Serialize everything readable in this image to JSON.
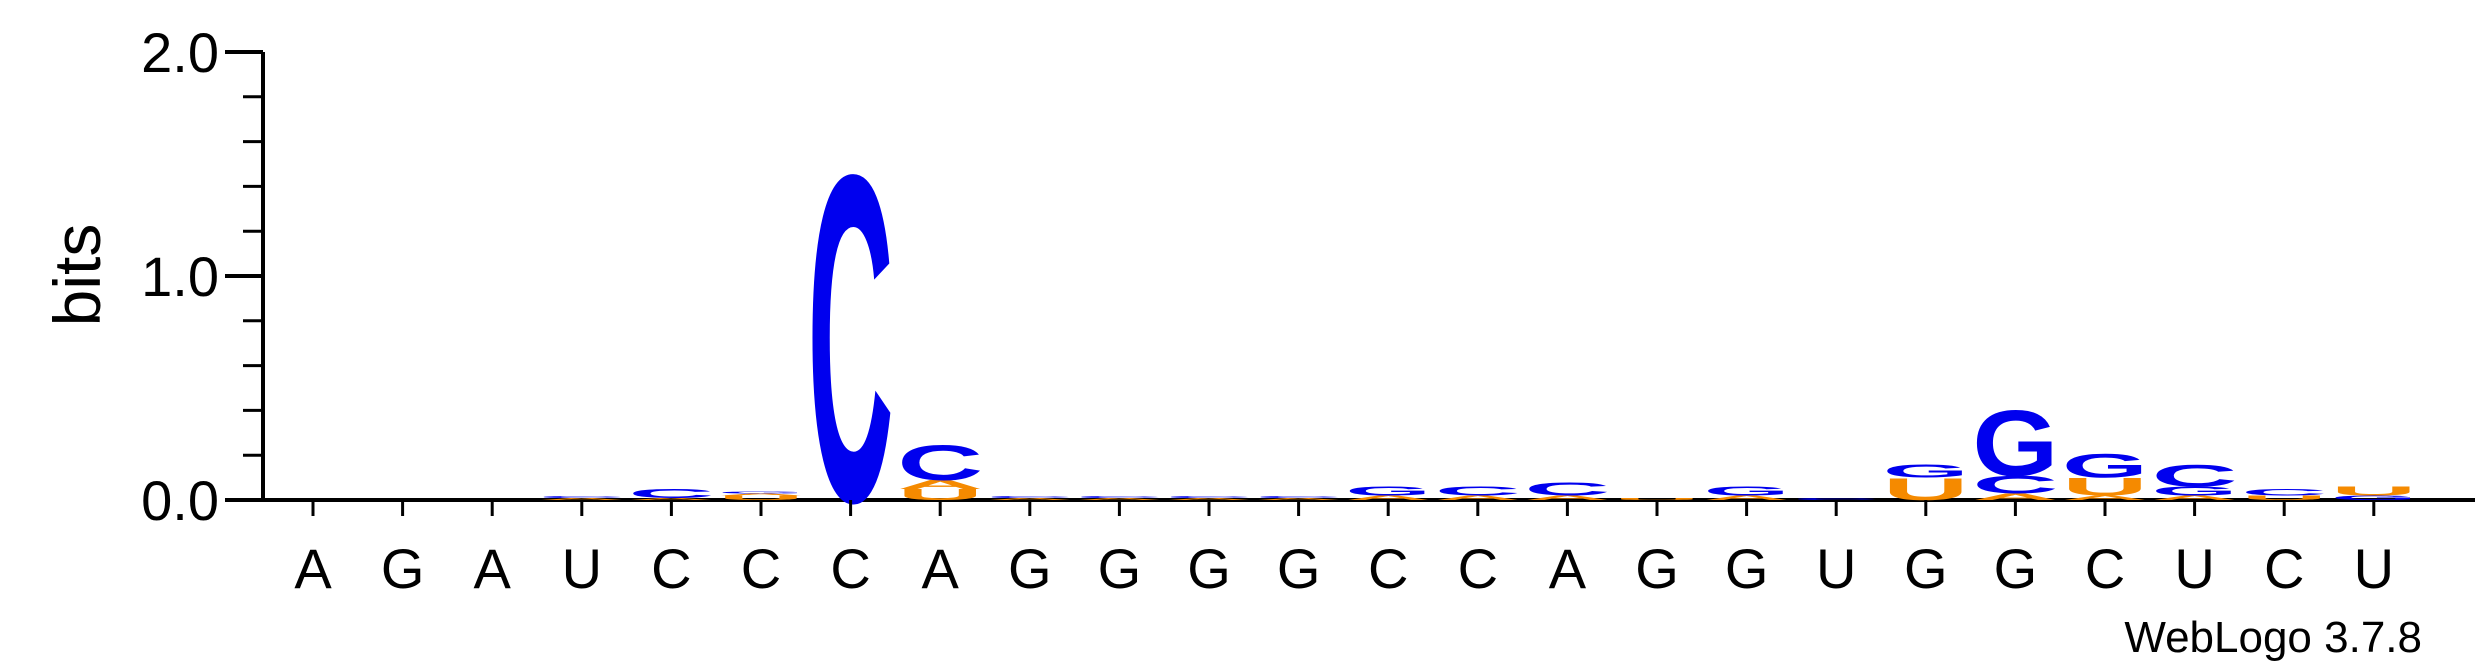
{
  "chart_data": {
    "type": "sequence-logo",
    "ylabel": "bits",
    "ylim": [
      0,
      2.0
    ],
    "yticks": [
      {
        "value": 0.0,
        "label": "0.0"
      },
      {
        "value": 1.0,
        "label": "1.0"
      },
      {
        "value": 2.0,
        "label": "2.0"
      }
    ],
    "positions": [
      "A",
      "G",
      "A",
      "U",
      "C",
      "C",
      "C",
      "A",
      "G",
      "G",
      "G",
      "G",
      "C",
      "C",
      "A",
      "G",
      "G",
      "U",
      "G",
      "G",
      "C",
      "U",
      "C",
      "U"
    ],
    "colors": {
      "A": "#f58a00",
      "C": "#0000ee",
      "G": "#0000ee",
      "U": "#f58a00"
    },
    "stacks": [
      [],
      [],
      [],
      [
        {
          "letter": "A",
          "value": 0.01
        },
        {
          "letter": "C",
          "value": 0.01
        }
      ],
      [
        {
          "letter": "A",
          "value": 0.01
        },
        {
          "letter": "C",
          "value": 0.04
        }
      ],
      [
        {
          "letter": "U",
          "value": 0.02
        },
        {
          "letter": "A",
          "value": 0.01
        },
        {
          "letter": "G",
          "value": 0.01
        }
      ],
      [
        {
          "letter": "C",
          "value": 1.5
        }
      ],
      [
        {
          "letter": "U",
          "value": 0.05
        },
        {
          "letter": "A",
          "value": 0.04
        },
        {
          "letter": "C",
          "value": 0.16
        }
      ],
      [
        {
          "letter": "A",
          "value": 0.01
        },
        {
          "letter": "C",
          "value": 0.01
        }
      ],
      [
        {
          "letter": "A",
          "value": 0.01
        },
        {
          "letter": "C",
          "value": 0.01
        }
      ],
      [
        {
          "letter": "A",
          "value": 0.01
        },
        {
          "letter": "C",
          "value": 0.01
        }
      ],
      [
        {
          "letter": "A",
          "value": 0.01
        },
        {
          "letter": "C",
          "value": 0.01
        }
      ],
      [
        {
          "letter": "A",
          "value": 0.02
        },
        {
          "letter": "G",
          "value": 0.04
        }
      ],
      [
        {
          "letter": "A",
          "value": 0.02
        },
        {
          "letter": "C",
          "value": 0.04
        }
      ],
      [
        {
          "letter": "A",
          "value": 0.02
        },
        {
          "letter": "C",
          "value": 0.06
        }
      ],
      [
        {
          "letter": "U",
          "value": 0.01
        }
      ],
      [
        {
          "letter": "A",
          "value": 0.02
        },
        {
          "letter": "G",
          "value": 0.04
        }
      ],
      [
        {
          "letter": "C",
          "value": 0.01
        }
      ],
      [
        {
          "letter": "U",
          "value": 0.1
        },
        {
          "letter": "G",
          "value": 0.06
        }
      ],
      [
        {
          "letter": "A",
          "value": 0.03
        },
        {
          "letter": "C",
          "value": 0.08
        },
        {
          "letter": "G",
          "value": 0.3
        }
      ],
      [
        {
          "letter": "A",
          "value": 0.02
        },
        {
          "letter": "U",
          "value": 0.08
        },
        {
          "letter": "G",
          "value": 0.11
        }
      ],
      [
        {
          "letter": "A",
          "value": 0.02
        },
        {
          "letter": "G",
          "value": 0.04
        },
        {
          "letter": "C",
          "value": 0.1
        }
      ],
      [
        {
          "letter": "U",
          "value": 0.02
        },
        {
          "letter": "C",
          "value": 0.03
        }
      ],
      [
        {
          "letter": "G",
          "value": 0.02
        },
        {
          "letter": "U",
          "value": 0.04
        }
      ]
    ]
  },
  "footer": "WebLogo 3.7.8"
}
